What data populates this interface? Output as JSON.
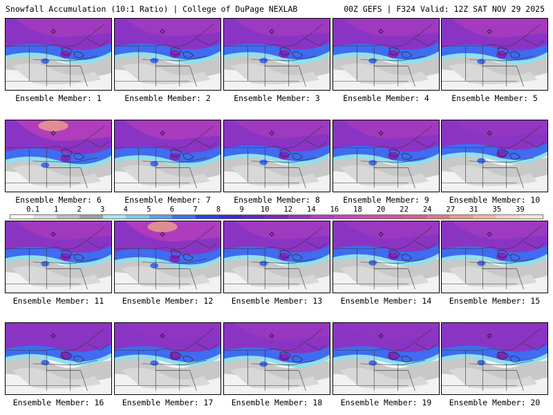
{
  "header": {
    "title": "Snowfall Accumulation (10:1 Ratio) | College of DuPage NEXLAB",
    "run_info": "00Z GEFS | F324 Valid: 12Z SAT NOV 29 2025"
  },
  "members": [
    {
      "label": "Ensemble Member: 1",
      "snow_intensity": 0.75
    },
    {
      "label": "Ensemble Member: 2",
      "snow_intensity": 0.7
    },
    {
      "label": "Ensemble Member: 3",
      "snow_intensity": 0.7
    },
    {
      "label": "Ensemble Member: 4",
      "snow_intensity": 0.72
    },
    {
      "label": "Ensemble Member: 5",
      "snow_intensity": 0.8
    },
    {
      "label": "Ensemble Member: 6",
      "snow_intensity": 1.0
    },
    {
      "label": "Ensemble Member: 7",
      "snow_intensity": 0.85
    },
    {
      "label": "Ensemble Member: 8",
      "snow_intensity": 0.7
    },
    {
      "label": "Ensemble Member: 9",
      "snow_intensity": 0.75
    },
    {
      "label": "Ensemble Member: 10",
      "snow_intensity": 0.55
    },
    {
      "label": "Ensemble Member: 11",
      "snow_intensity": 0.75
    },
    {
      "label": "Ensemble Member: 12",
      "snow_intensity": 0.95
    },
    {
      "label": "Ensemble Member: 13",
      "snow_intensity": 0.72
    },
    {
      "label": "Ensemble Member: 14",
      "snow_intensity": 0.65
    },
    {
      "label": "Ensemble Member: 15",
      "snow_intensity": 0.7
    },
    {
      "label": "Ensemble Member: 16",
      "snow_intensity": 0.45
    },
    {
      "label": "Ensemble Member: 17",
      "snow_intensity": 0.5
    },
    {
      "label": "Ensemble Member: 18",
      "snow_intensity": 0.62
    },
    {
      "label": "Ensemble Member: 19",
      "snow_intensity": 0.5
    },
    {
      "label": "Ensemble Member: 20",
      "snow_intensity": 0.45
    }
  ],
  "scale": {
    "labels": [
      "0.1",
      "1",
      "2",
      "3",
      "4",
      "5",
      "6",
      "7",
      "8",
      "9",
      "10",
      "12",
      "14",
      "16",
      "18",
      "20",
      "22",
      "24",
      "27",
      "31",
      "35",
      "39"
    ],
    "colors": [
      "#ffffff",
      "#dcdcdc",
      "#bdbdbd",
      "#9e9e9e",
      "#a8e6f0",
      "#7fc8ec",
      "#5aa0ea",
      "#3d6ff0",
      "#2a3fe6",
      "#3a2ad6",
      "#5a28c8",
      "#7a2ac0",
      "#9a30c4",
      "#b838c8",
      "#cc40c0",
      "#d448a8",
      "#d85298",
      "#dc5c88",
      "#e07a80",
      "#e89a8c",
      "#f0b4a0",
      "#f8d4c0",
      "#fce8d8"
    ]
  }
}
